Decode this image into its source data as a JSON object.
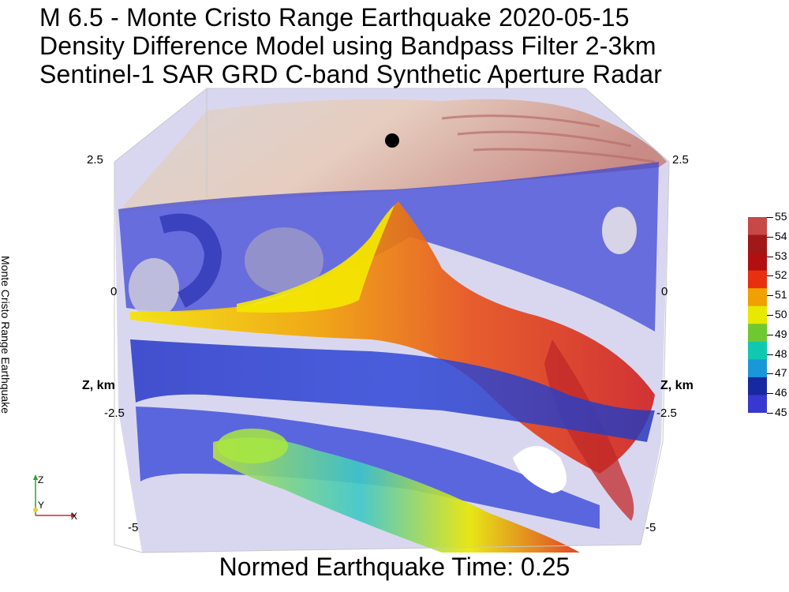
{
  "title_lines": [
    "M 6.5 - Monte Cristo Range Earthquake 2020-05-15",
    "Density Difference Model using Bandpass Filter 2-3km",
    "Sentinel-1 SAR GRD C-band Synthetic Aperture Radar"
  ],
  "axis": {
    "left_ticks": [
      "2.5",
      "0",
      "-2.5",
      "-5"
    ],
    "right_ticks": [
      "2.5",
      "0",
      "-2.5",
      "-5"
    ],
    "z_label_left": "Z, km",
    "z_label_right": "Z, km"
  },
  "side_label": "Monte Cristo Range Earthquake",
  "colorbar": {
    "tick_labels": [
      "55",
      "54",
      "53",
      "52",
      "51",
      "50",
      "49",
      "48",
      "47",
      "46",
      "45"
    ],
    "colors_top_to_bottom": [
      "#c84848",
      "#a01818",
      "#b01010",
      "#e83010",
      "#f0a000",
      "#e8e800",
      "#70c830",
      "#10c8b0",
      "#1898d8",
      "#1828a0",
      "#3838d0"
    ]
  },
  "caption": "Normed Earthquake Time: 0.25",
  "triad": {
    "x": "X",
    "y": "Y",
    "z": "Z"
  },
  "palette": {
    "surface_top": "#e2c7c0",
    "blue": "#3b43d6",
    "red": "#e0302a",
    "yellow": "#f2e20a",
    "green": "#5fd24a",
    "cyan": "#1bb6d4"
  }
}
